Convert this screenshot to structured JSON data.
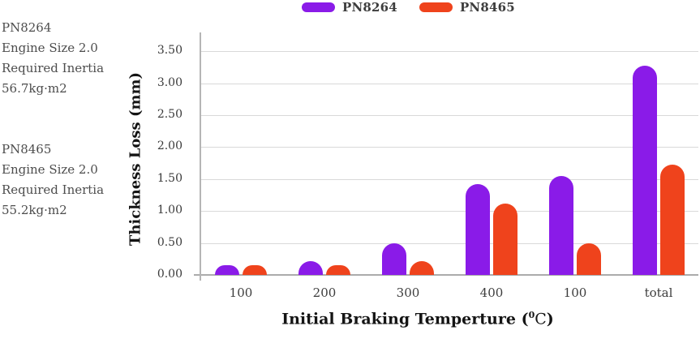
{
  "annotations": [
    {
      "lines": [
        "PN8264",
        "Engine Size 2.0",
        "Required Inertia",
        "56.7kg·m2"
      ]
    },
    {
      "lines": [
        "PN8465",
        "Engine Size 2.0",
        "Required Inertia",
        "55.2kg·m2"
      ]
    }
  ],
  "chart_data": {
    "type": "bar",
    "grouped": true,
    "title": "",
    "categories": [
      "100",
      "200",
      "300",
      "400",
      "100",
      "total"
    ],
    "series": [
      {
        "name": "PN8264",
        "color": "#8A1BE8",
        "values": [
          0.15,
          0.22,
          0.5,
          1.42,
          1.55,
          3.27
        ]
      },
      {
        "name": "PN8465",
        "color": "#EF431C",
        "values": [
          0.15,
          0.15,
          0.22,
          1.12,
          0.5,
          1.72
        ]
      }
    ],
    "ylabel": "Thickness Loss (mm)",
    "xlabel": {
      "prefix": "Initial Braking Temperture (",
      "sup": "0",
      "unit": "C",
      "suffix": ")"
    },
    "ylim": [
      0,
      3.5
    ],
    "yticks": [
      0.0,
      0.5,
      1.0,
      1.5,
      2.0,
      2.5,
      3.0,
      3.5
    ],
    "ytick_format": "0.00",
    "grid": "horizontal",
    "legend_position": "top-center"
  },
  "colors": {
    "gridline": "#d9d9d9",
    "baseline": "#ababab",
    "axis": "#b5b5b5",
    "annotation_text": "#4d4d4d",
    "tick_text": "#3a3a3a",
    "title_text": "#141414",
    "purple": "#8A1BE8",
    "orange": "#EF431C"
  }
}
